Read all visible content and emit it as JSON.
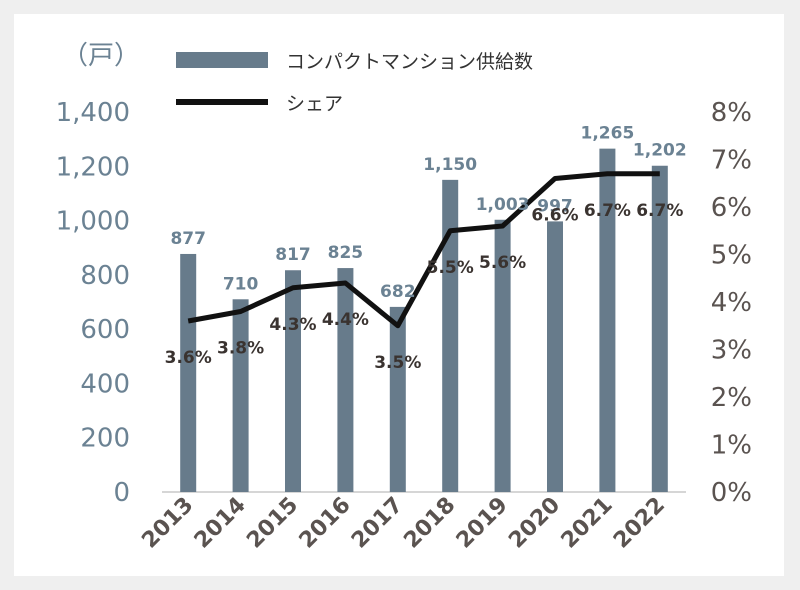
{
  "chart_data": {
    "type": "bar",
    "categories": [
      "2013",
      "2014",
      "2015",
      "2016",
      "2017",
      "2018",
      "2019",
      "2020",
      "2021",
      "2022"
    ],
    "series": [
      {
        "name": "コンパクトマンション供給数",
        "type": "bar",
        "axis": "left",
        "values": [
          877,
          710,
          817,
          825,
          682,
          1150,
          1003,
          997,
          1265,
          1202
        ],
        "labels": [
          "877",
          "710",
          "817",
          "825",
          "682",
          "1,150",
          "1,003",
          "997",
          "1,265",
          "1,202"
        ],
        "color": "#677b8b"
      },
      {
        "name": "シェア",
        "type": "line",
        "axis": "right",
        "values": [
          3.6,
          3.8,
          4.3,
          4.4,
          3.5,
          5.5,
          5.6,
          6.6,
          6.7,
          6.7
        ],
        "labels": [
          "3.6%",
          "3.8%",
          "4.3%",
          "4.4%",
          "3.5%",
          "5.5%",
          "5.6%",
          "6.6%",
          "6.7%",
          "6.7%"
        ],
        "color": "#111111"
      }
    ],
    "left_axis": {
      "unit_label": "（戸）",
      "ylim": [
        0,
        1400
      ],
      "ticks": [
        "0",
        "200",
        "400",
        "600",
        "800",
        "1,000",
        "1,200",
        "1,400"
      ]
    },
    "right_axis": {
      "ylim": [
        0,
        8
      ],
      "ticks": [
        "0%",
        "1%",
        "2%",
        "3%",
        "4%",
        "5%",
        "6%",
        "7%",
        "8%"
      ]
    },
    "legend": {
      "placement": "top-center"
    },
    "grid": false
  }
}
